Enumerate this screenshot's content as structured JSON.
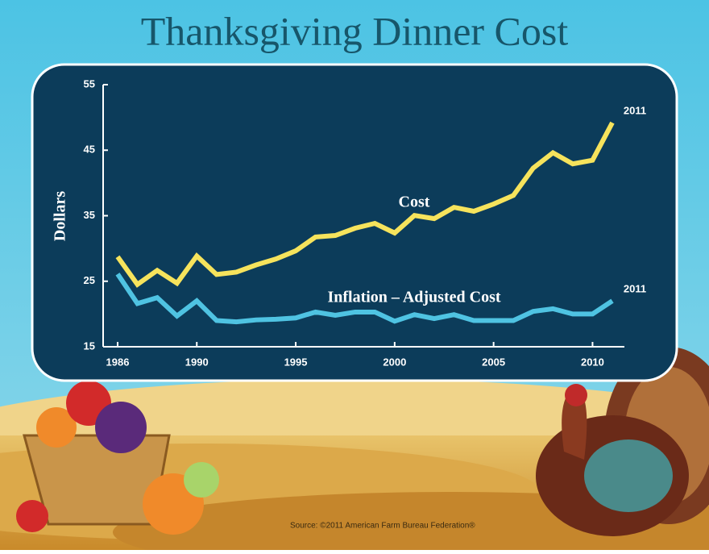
{
  "chart_data": {
    "type": "line",
    "title": "Thanksgiving Dinner Cost",
    "y_label": "Dollars",
    "x": [
      1986,
      1987,
      1988,
      1989,
      1990,
      1991,
      1992,
      1993,
      1994,
      1995,
      1996,
      1997,
      1998,
      1999,
      2000,
      2001,
      2002,
      2003,
      2004,
      2005,
      2006,
      2007,
      2008,
      2009,
      2010,
      2011
    ],
    "series": [
      {
        "name": "Cost",
        "color": "#f6e35c",
        "end_label": "2011",
        "values": [
          28.74,
          24.51,
          26.65,
          24.7,
          28.85,
          26.03,
          26.39,
          27.49,
          28.4,
          29.64,
          31.75,
          31.98,
          33.09,
          33.83,
          32.37,
          35.04,
          34.56,
          36.28,
          35.68,
          36.78,
          38.1,
          42.26,
          44.61,
          42.91,
          43.47,
          49.2
        ]
      },
      {
        "name": "Inflation – Adjusted Cost",
        "color": "#4fc3e2",
        "end_label": "2011",
        "values": [
          26.1,
          21.6,
          22.5,
          19.7,
          22.0,
          19.0,
          18.8,
          19.1,
          19.2,
          19.4,
          20.3,
          19.8,
          20.3,
          20.3,
          18.9,
          19.9,
          19.3,
          19.9,
          19.0,
          19.0,
          19.0,
          20.4,
          20.8,
          20.0,
          20.0,
          22.0
        ]
      }
    ],
    "xlim": [
      1986,
      2011
    ],
    "xticks": [
      1986,
      1990,
      1995,
      2000,
      2005,
      2010
    ],
    "ylim": [
      15,
      55
    ],
    "yticks": [
      15,
      25,
      35,
      45,
      55
    ],
    "source": "Source: ©2011 American Farm Bureau Federation®"
  }
}
